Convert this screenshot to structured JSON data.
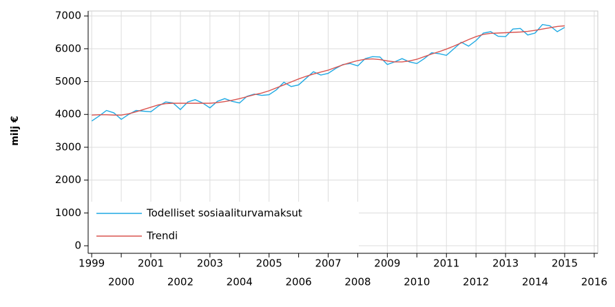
{
  "chart_data": {
    "type": "line",
    "ylabel": "milj €",
    "x": [
      1999,
      1999.25,
      1999.5,
      1999.75,
      2000,
      2000.25,
      2000.5,
      2000.75,
      2001,
      2001.25,
      2001.5,
      2001.75,
      2002,
      2002.25,
      2002.5,
      2002.75,
      2003,
      2003.25,
      2003.5,
      2003.75,
      2004,
      2004.25,
      2004.5,
      2004.75,
      2005,
      2005.25,
      2005.5,
      2005.75,
      2006,
      2006.25,
      2006.5,
      2006.75,
      2007,
      2007.25,
      2007.5,
      2007.75,
      2008,
      2008.25,
      2008.5,
      2008.75,
      2009,
      2009.25,
      2009.5,
      2009.75,
      2010,
      2010.25,
      2010.5,
      2010.75,
      2011,
      2011.25,
      2011.5,
      2011.75,
      2012,
      2012.25,
      2012.5,
      2012.75,
      2013,
      2013.25,
      2013.5,
      2013.75,
      2014,
      2014.25,
      2014.5,
      2014.75,
      2015
    ],
    "series": [
      {
        "name": "Todelliset sosiaaliturvamaksut",
        "color": "#1ea9e3",
        "values": [
          3800,
          3950,
          4120,
          4050,
          3850,
          4000,
          4120,
          4100,
          4080,
          4250,
          4380,
          4350,
          4150,
          4380,
          4450,
          4350,
          4200,
          4400,
          4480,
          4400,
          4350,
          4550,
          4620,
          4580,
          4600,
          4750,
          4980,
          4850,
          4900,
          5100,
          5300,
          5200,
          5250,
          5400,
          5520,
          5550,
          5480,
          5700,
          5760,
          5750,
          5520,
          5600,
          5700,
          5600,
          5550,
          5700,
          5880,
          5850,
          5800,
          6000,
          6200,
          6080,
          6250,
          6480,
          6520,
          6380,
          6370,
          6600,
          6620,
          6420,
          6480,
          6740,
          6700,
          6520,
          6650
        ]
      },
      {
        "name": "Trendi",
        "color": "#d9534f",
        "values": [
          3980,
          3990,
          3990,
          3980,
          3980,
          4020,
          4080,
          4150,
          4220,
          4290,
          4330,
          4340,
          4340,
          4340,
          4340,
          4340,
          4340,
          4360,
          4390,
          4430,
          4480,
          4540,
          4600,
          4650,
          4720,
          4810,
          4900,
          4990,
          5080,
          5160,
          5230,
          5290,
          5350,
          5430,
          5510,
          5580,
          5640,
          5680,
          5690,
          5670,
          5630,
          5600,
          5600,
          5630,
          5680,
          5760,
          5840,
          5910,
          5990,
          6080,
          6180,
          6280,
          6370,
          6440,
          6470,
          6480,
          6490,
          6500,
          6510,
          6530,
          6560,
          6600,
          6640,
          6680,
          6700
        ]
      }
    ],
    "xlim": [
      1998.88,
      2016.12
    ],
    "xticks": [
      1999,
      2000,
      2001,
      2002,
      2003,
      2004,
      2005,
      2006,
      2007,
      2008,
      2009,
      2010,
      2011,
      2012,
      2013,
      2014,
      2015,
      2016
    ],
    "ylim": [
      -230,
      7150
    ],
    "yticks": [
      0,
      1000,
      2000,
      3000,
      4000,
      5000,
      6000,
      7000
    ],
    "grid": true,
    "legend": "lower-left"
  }
}
